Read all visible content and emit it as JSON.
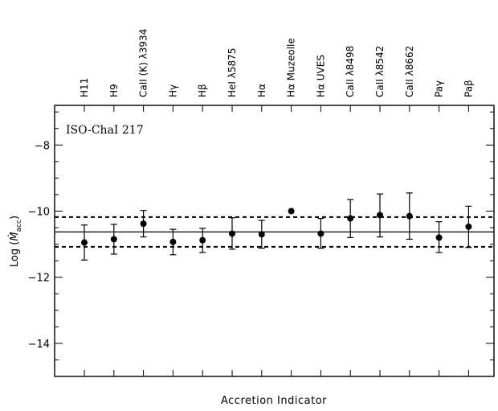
{
  "chart_data": {
    "type": "scatter",
    "title": "ISO-ChaI 217",
    "xlabel": "Accretion Indicator",
    "ylabel": "Log (Ṁacc)",
    "ylabel_main": "Log (",
    "ylabel_symbol": "Ṁ",
    "ylabel_subscript": "acc",
    "ylabel_close": ")",
    "ylim": [
      -15,
      -6.8
    ],
    "yticks": [
      -14,
      -12,
      -10,
      -8
    ],
    "ytick_labels": [
      "−14",
      "−12",
      "−10",
      "−8"
    ],
    "grid": false,
    "categories": [
      "H11",
      "H9",
      "CaII (K) λ3934",
      "Hγ",
      "Hβ",
      "HeI λ5875",
      "Hα",
      "Hα Muzeolle",
      "Hα UVES",
      "CaII λ8498",
      "CaII λ8542",
      "CaII λ8662",
      "Paγ",
      "Paβ"
    ],
    "series": [
      {
        "values": [
          -10.95,
          -10.85,
          -10.38,
          -10.93,
          -10.88,
          -10.68,
          -10.7,
          -10.0,
          -10.68,
          -10.22,
          -10.12,
          -10.15,
          -10.8,
          -10.47
        ],
        "err_low": [
          -11.48,
          -11.3,
          -10.78,
          -11.32,
          -11.25,
          -11.15,
          -11.12,
          null,
          -11.12,
          -10.8,
          -10.78,
          -10.85,
          -11.25,
          -11.1
        ],
        "err_high": [
          -10.42,
          -10.4,
          -9.98,
          -10.55,
          -10.52,
          -10.2,
          -10.28,
          null,
          -10.22,
          -9.65,
          -9.48,
          -9.45,
          -10.32,
          -9.85
        ]
      }
    ],
    "mean_line": -10.63,
    "band_lines": [
      -10.18,
      -11.08
    ]
  }
}
